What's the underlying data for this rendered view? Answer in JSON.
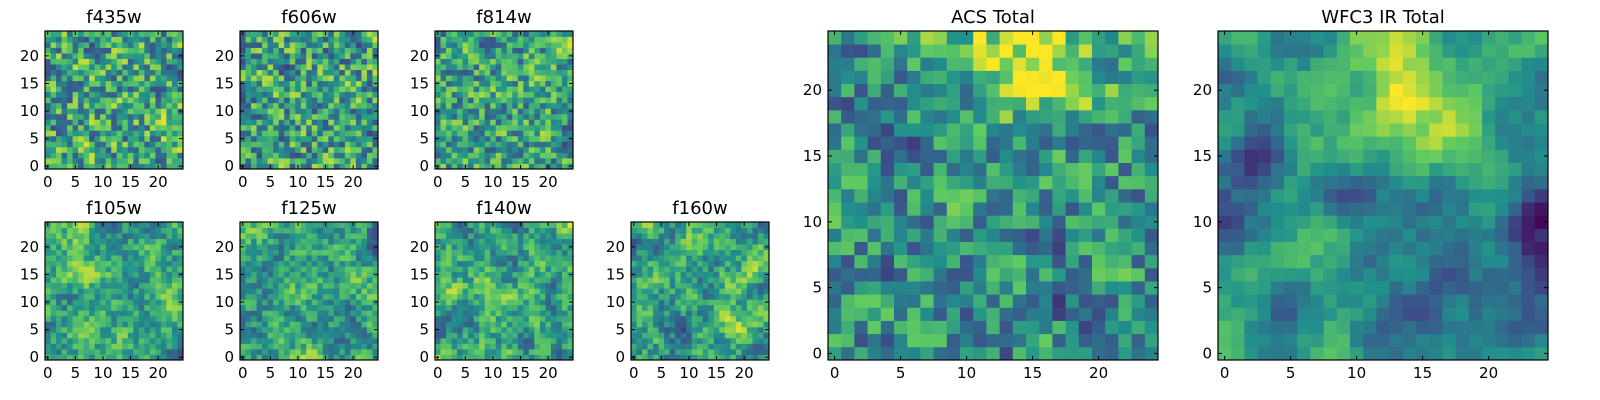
{
  "figure": {
    "layout": "two rows of small band panels, two large summary panels"
  },
  "colormap": [
    "#440154",
    "#3b528b",
    "#21918c",
    "#5ec962",
    "#fde725"
  ],
  "chart_data": [
    {
      "type": "heatmap",
      "title": "f435w",
      "grid": false,
      "rows": 25,
      "cols": 25,
      "xlim": [
        0,
        24
      ],
      "ylim": [
        0,
        24
      ],
      "xticks": [
        0,
        5,
        10,
        15,
        20
      ],
      "yticks": [
        0,
        5,
        10,
        15,
        20
      ],
      "pattern": {
        "seed": 11,
        "smooth": 0.15,
        "noise": 0.85,
        "bias": 0.62
      }
    },
    {
      "type": "heatmap",
      "title": "f606w",
      "grid": false,
      "rows": 25,
      "cols": 25,
      "xlim": [
        0,
        24
      ],
      "ylim": [
        0,
        24
      ],
      "xticks": [
        0,
        5,
        10,
        15,
        20
      ],
      "yticks": [
        0,
        5,
        10,
        15,
        20
      ],
      "pattern": {
        "seed": 23,
        "smooth": 0.15,
        "noise": 0.85,
        "bias": 0.58
      }
    },
    {
      "type": "heatmap",
      "title": "f814w",
      "grid": false,
      "rows": 25,
      "cols": 25,
      "xlim": [
        0,
        24
      ],
      "ylim": [
        0,
        24
      ],
      "xticks": [
        0,
        5,
        10,
        15,
        20
      ],
      "yticks": [
        0,
        5,
        10,
        15,
        20
      ],
      "pattern": {
        "seed": 37,
        "smooth": 0.25,
        "noise": 0.75,
        "bias": 0.6
      }
    },
    {
      "type": "heatmap",
      "title": "f105w",
      "grid": false,
      "rows": 25,
      "cols": 25,
      "xlim": [
        0,
        24
      ],
      "ylim": [
        0,
        24
      ],
      "xticks": [
        0,
        5,
        10,
        15,
        20
      ],
      "yticks": [
        0,
        5,
        10,
        15,
        20
      ],
      "pattern": {
        "seed": 41,
        "smooth": 0.55,
        "noise": 0.45,
        "bias": 0.6
      }
    },
    {
      "type": "heatmap",
      "title": "f125w",
      "grid": false,
      "rows": 25,
      "cols": 25,
      "xlim": [
        0,
        24
      ],
      "ylim": [
        0,
        24
      ],
      "xticks": [
        0,
        5,
        10,
        15,
        20
      ],
      "yticks": [
        0,
        5,
        10,
        15,
        20
      ],
      "pattern": {
        "seed": 53,
        "smooth": 0.55,
        "noise": 0.45,
        "bias": 0.58
      }
    },
    {
      "type": "heatmap",
      "title": "f140w",
      "grid": false,
      "rows": 25,
      "cols": 25,
      "xlim": [
        0,
        24
      ],
      "ylim": [
        0,
        24
      ],
      "xticks": [
        0,
        5,
        10,
        15,
        20
      ],
      "yticks": [
        0,
        5,
        10,
        15,
        20
      ],
      "pattern": {
        "seed": 67,
        "smooth": 0.55,
        "noise": 0.45,
        "bias": 0.62
      }
    },
    {
      "type": "heatmap",
      "title": "f160w",
      "grid": false,
      "rows": 25,
      "cols": 25,
      "xlim": [
        0,
        24
      ],
      "ylim": [
        0,
        24
      ],
      "xticks": [
        0,
        5,
        10,
        15,
        20
      ],
      "yticks": [
        0,
        5,
        10,
        15,
        20
      ],
      "pattern": {
        "seed": 79,
        "smooth": 0.55,
        "noise": 0.45,
        "bias": 0.6
      }
    },
    {
      "type": "heatmap",
      "title": "ACS Total",
      "grid": false,
      "rows": 25,
      "cols": 25,
      "xlim": [
        0,
        24
      ],
      "ylim": [
        0,
        24
      ],
      "xticks": [
        0,
        5,
        10,
        15,
        20
      ],
      "yticks": [
        0,
        5,
        10,
        15,
        20
      ],
      "pattern": {
        "seed": 97,
        "smooth": 0.35,
        "noise": 0.65,
        "bias": 0.6,
        "hotspot": [
          15,
          22
        ]
      }
    },
    {
      "type": "heatmap",
      "title": "WFC3 IR Total",
      "grid": false,
      "rows": 25,
      "cols": 25,
      "xlim": [
        0,
        24
      ],
      "ylim": [
        0,
        24
      ],
      "xticks": [
        0,
        5,
        10,
        15,
        20
      ],
      "yticks": [
        0,
        5,
        10,
        15,
        20
      ],
      "pattern": {
        "seed": 113,
        "smooth": 0.8,
        "noise": 0.2,
        "bias": 0.45,
        "hotspot": [
          15,
          22
        ]
      }
    }
  ]
}
